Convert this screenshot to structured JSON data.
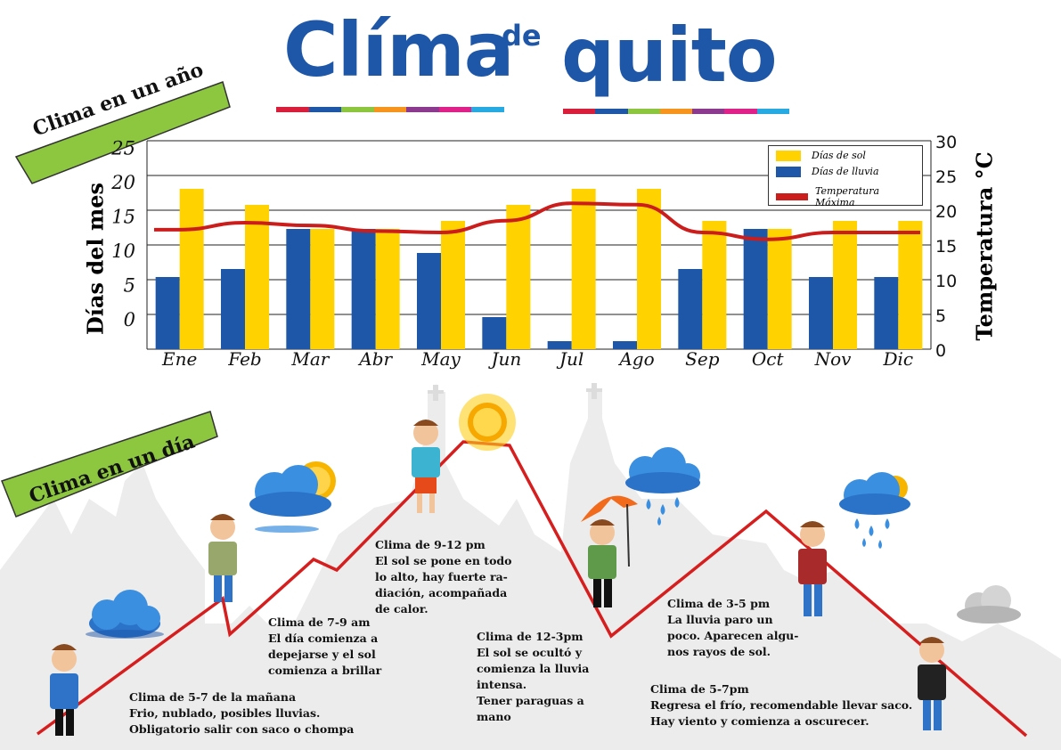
{
  "title": {
    "clima": "Clíma",
    "de": "de",
    "quito": "quito"
  },
  "stripe_colors": [
    "#d81e3a",
    "#1e56a8",
    "#8cc63f",
    "#f7941d",
    "#8b3a8f",
    "#e0218a",
    "#27aae1"
  ],
  "banner_year": "Clima en un año",
  "banner_day": "Clima en un día",
  "banner_color": "#8dc63f",
  "chart_data": {
    "type": "bar",
    "categories": [
      "Ene",
      "Feb",
      "Mar",
      "Abr",
      "May",
      "Jun",
      "Jul",
      "Ago",
      "Sep",
      "Oct",
      "Nov",
      "Dic"
    ],
    "series": [
      {
        "name": "Días de lluvia",
        "values": [
          9,
          10,
          15,
          15,
          12,
          4,
          1,
          1,
          10,
          15,
          9,
          9
        ],
        "color": "#1e56a8"
      },
      {
        "name": "Días de sol",
        "values": [
          20,
          18,
          15,
          15,
          16,
          18,
          20,
          20,
          16,
          15,
          16,
          16
        ],
        "color": "#ffd200"
      },
      {
        "name": "Temperatura Máxima",
        "axis": "right",
        "type": "line",
        "values": [
          17.2,
          18.2,
          17.8,
          17.0,
          16.8,
          18.5,
          21.0,
          20.8,
          16.8,
          15.8,
          16.8,
          16.8
        ],
        "color": "#cc1d1d"
      }
    ],
    "ylabel": "Días del mes",
    "y2label": "Temperatura °C",
    "yticks": [
      "0",
      "5",
      "10",
      "15",
      "20",
      "25"
    ],
    "y2ticks": [
      "0",
      "5",
      "10",
      "15",
      "20",
      "25",
      "30"
    ],
    "ylim": [
      0,
      25
    ],
    "y2lim": [
      0,
      30
    ],
    "legend_position": "top-right",
    "legend": [
      "Días de sol",
      "Días de lluvia",
      "Temperatura Máxima"
    ]
  },
  "day_notes": [
    {
      "lines": [
        "Clima de 5-7 de la mañana",
        "Frio, nublado, posibles lluvias.",
        "Obligatorio salir con saco o chompa"
      ]
    },
    {
      "lines": [
        "Clima de 7-9 am",
        "El día comienza a",
        "depejarse y el sol",
        "comienza a brillar"
      ]
    },
    {
      "lines": [
        "Clima de 9-12 pm",
        "El sol se pone en todo",
        "lo alto, hay fuerte ra-",
        "diación, acompañada",
        "de calor."
      ]
    },
    {
      "lines": [
        "Clima de 12-3pm",
        "El sol se ocultó y",
        "comienza la lluvia",
        "intensa.",
        "Tener paraguas a",
        "mano"
      ]
    },
    {
      "lines": [
        "Clima de 3-5 pm",
        "La lluvia paro un",
        "poco. Aparecen algu-",
        "nos rayos de sol."
      ]
    },
    {
      "lines": [
        "Clima de 5-7pm",
        "Regresa el frío, recomendable llevar saco.",
        "Hay viento y comienza a oscurecer."
      ]
    }
  ],
  "icons": [
    "cloud-icon",
    "sun-behind-cloud-icon",
    "sun-icon",
    "rain-cloud-icon",
    "umbrella-icon",
    "person-icon"
  ]
}
